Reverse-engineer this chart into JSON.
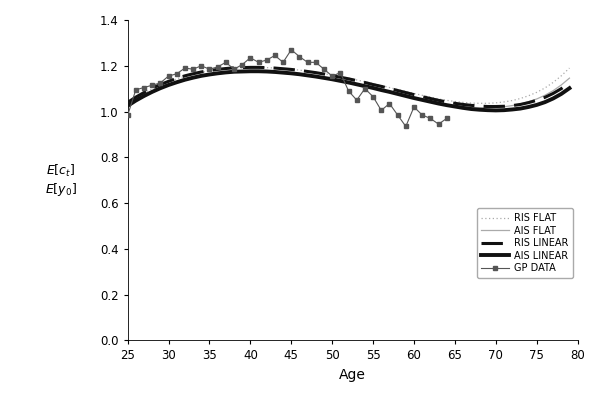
{
  "gp_data_ages": [
    25,
    26,
    27,
    28,
    29,
    30,
    31,
    32,
    33,
    34,
    35,
    36,
    37,
    38,
    39,
    40,
    41,
    42,
    43,
    44,
    45,
    46,
    47,
    48,
    49,
    50,
    51,
    52,
    53,
    54,
    55,
    56,
    57,
    58,
    59,
    60,
    61,
    62,
    63,
    64
  ],
  "gp_data_values": [
    0.983,
    1.095,
    1.105,
    1.115,
    1.125,
    1.155,
    1.165,
    1.19,
    1.185,
    1.2,
    1.185,
    1.195,
    1.215,
    1.185,
    1.205,
    1.235,
    1.215,
    1.225,
    1.245,
    1.215,
    1.27,
    1.24,
    1.215,
    1.215,
    1.185,
    1.155,
    1.17,
    1.09,
    1.05,
    1.1,
    1.065,
    1.005,
    1.035,
    0.985,
    0.935,
    1.02,
    0.985,
    0.97,
    0.945,
    0.97
  ],
  "smooth_ages": [
    25,
    26,
    27,
    28,
    29,
    30,
    31,
    32,
    33,
    34,
    35,
    36,
    37,
    38,
    39,
    40,
    41,
    42,
    43,
    44,
    45,
    46,
    47,
    48,
    49,
    50,
    51,
    52,
    53,
    54,
    55,
    56,
    57,
    58,
    59,
    60,
    61,
    62,
    63,
    64,
    65,
    66,
    67,
    68,
    69,
    70,
    71,
    72,
    73,
    74,
    75,
    76,
    77,
    78,
    79
  ],
  "ais_linear": [
    1.025,
    1.048,
    1.068,
    1.086,
    1.102,
    1.116,
    1.128,
    1.139,
    1.148,
    1.156,
    1.162,
    1.167,
    1.171,
    1.174,
    1.175,
    1.176,
    1.176,
    1.175,
    1.173,
    1.17,
    1.167,
    1.163,
    1.158,
    1.153,
    1.147,
    1.141,
    1.134,
    1.127,
    1.119,
    1.111,
    1.103,
    1.094,
    1.086,
    1.077,
    1.068,
    1.059,
    1.051,
    1.043,
    1.035,
    1.028,
    1.022,
    1.016,
    1.011,
    1.008,
    1.006,
    1.005,
    1.006,
    1.009,
    1.013,
    1.02,
    1.029,
    1.041,
    1.057,
    1.077,
    1.102
  ],
  "ris_linear": [
    1.04,
    1.063,
    1.083,
    1.102,
    1.118,
    1.132,
    1.145,
    1.156,
    1.165,
    1.173,
    1.179,
    1.184,
    1.188,
    1.191,
    1.192,
    1.193,
    1.193,
    1.192,
    1.19,
    1.187,
    1.184,
    1.18,
    1.175,
    1.17,
    1.164,
    1.157,
    1.15,
    1.143,
    1.135,
    1.127,
    1.118,
    1.11,
    1.101,
    1.092,
    1.083,
    1.074,
    1.065,
    1.057,
    1.049,
    1.042,
    1.036,
    1.031,
    1.027,
    1.024,
    1.022,
    1.022,
    1.023,
    1.026,
    1.031,
    1.039,
    1.049,
    1.062,
    1.079,
    1.1,
    1.126
  ],
  "ais_flat": [
    1.022,
    1.045,
    1.065,
    1.083,
    1.099,
    1.113,
    1.125,
    1.136,
    1.145,
    1.153,
    1.159,
    1.164,
    1.168,
    1.171,
    1.173,
    1.173,
    1.173,
    1.172,
    1.17,
    1.167,
    1.164,
    1.16,
    1.155,
    1.15,
    1.145,
    1.139,
    1.132,
    1.125,
    1.118,
    1.11,
    1.102,
    1.093,
    1.085,
    1.076,
    1.068,
    1.059,
    1.051,
    1.043,
    1.036,
    1.03,
    1.025,
    1.021,
    1.018,
    1.017,
    1.017,
    1.018,
    1.021,
    1.026,
    1.033,
    1.043,
    1.055,
    1.071,
    1.091,
    1.116,
    1.146
  ],
  "ris_flat": [
    1.038,
    1.061,
    1.081,
    1.1,
    1.116,
    1.13,
    1.143,
    1.154,
    1.163,
    1.171,
    1.178,
    1.183,
    1.187,
    1.19,
    1.192,
    1.193,
    1.193,
    1.192,
    1.19,
    1.188,
    1.185,
    1.181,
    1.176,
    1.171,
    1.166,
    1.159,
    1.153,
    1.146,
    1.138,
    1.13,
    1.122,
    1.114,
    1.105,
    1.096,
    1.088,
    1.079,
    1.071,
    1.063,
    1.055,
    1.049,
    1.044,
    1.04,
    1.037,
    1.036,
    1.036,
    1.038,
    1.042,
    1.048,
    1.057,
    1.069,
    1.084,
    1.103,
    1.127,
    1.156,
    1.19
  ],
  "xlabel": "Age",
  "ylim": [
    0,
    1.4
  ],
  "xlim": [
    25,
    80
  ],
  "xticks": [
    25,
    30,
    35,
    40,
    45,
    50,
    55,
    60,
    65,
    70,
    75,
    80
  ],
  "yticks": [
    0,
    0.2,
    0.4,
    0.6,
    0.8,
    1.0,
    1.2,
    1.4
  ],
  "gp_color": "#555555",
  "ais_linear_color": "#111111",
  "ris_linear_color": "#111111",
  "ais_flat_color": "#aaaaaa",
  "ris_flat_color": "#aaaaaa"
}
